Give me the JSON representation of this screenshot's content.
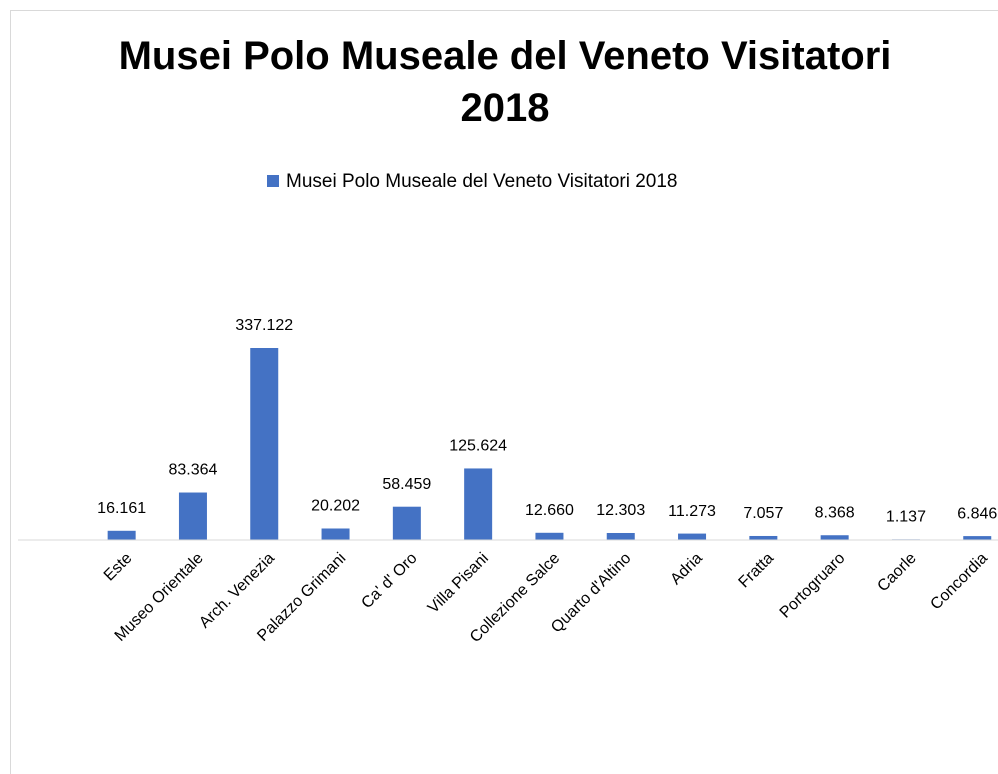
{
  "chart_data": {
    "type": "bar",
    "title": "Musei Polo Museale del Veneto Visitatori 2018",
    "categories": [
      "Este",
      "Museo Orientale",
      "Arch. Venezia",
      "Palazzo Grimani",
      "Ca' d' Oro",
      "Villa Pisani",
      "Collezione Salce",
      "Quarto d'Altino",
      "Adria",
      "Fratta",
      "Portogruaro",
      "Caorle",
      "Concordia"
    ],
    "series": [
      {
        "name": "Musei Polo Museale del Veneto Visitatori 2018",
        "color": "#4472c4",
        "values": [
          16161,
          83364,
          337122,
          20202,
          58459,
          125624,
          12660,
          12303,
          11273,
          7057,
          8368,
          1137,
          6846
        ],
        "value_labels": [
          "16.161",
          "83.364",
          "337.122",
          "20.202",
          "58.459",
          "125.624",
          "12.660",
          "12.303",
          "11.273",
          "7.057",
          "8.368",
          "1.137",
          "6.846"
        ]
      }
    ],
    "legend": "top"
  }
}
